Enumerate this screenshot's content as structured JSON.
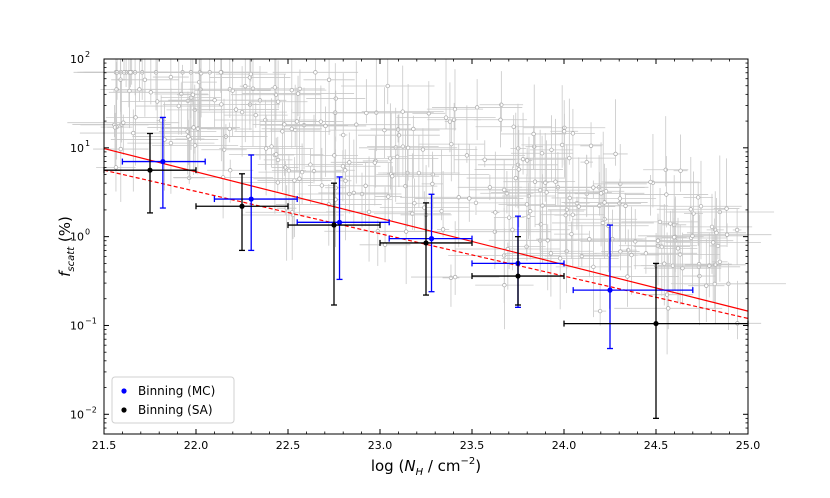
{
  "chart_data": {
    "type": "scatter",
    "xlabel": "log (N_H / cm^-2)",
    "ylabel": "f_scatt (%)",
    "xlim": [
      21.5,
      25.0
    ],
    "ylim": [
      0.006,
      100
    ],
    "yscale": "log",
    "x_ticks": [
      "21.5",
      "22.0",
      "22.5",
      "23.0",
      "23.5",
      "24.0",
      "24.5",
      "25.0"
    ],
    "y_ticks": [
      {
        "value": 0.01,
        "base": "10",
        "exp": "−2"
      },
      {
        "value": 0.1,
        "base": "10",
        "exp": "−1"
      },
      {
        "value": 1,
        "base": "10",
        "exp": "0"
      },
      {
        "value": 10,
        "base": "10",
        "exp": "1"
      },
      {
        "value": 100,
        "base": "10",
        "exp": "2"
      }
    ],
    "legend": {
      "position": "bottom-left"
    },
    "series": [
      {
        "name": "Binning (MC)",
        "color": "#0000ff",
        "points": [
          {
            "x": 21.82,
            "y": 7.0,
            "xerr": [
              21.6,
              22.05
            ],
            "yerr": [
              2.1,
              22.0
            ]
          },
          {
            "x": 22.3,
            "y": 2.65,
            "xerr": [
              22.1,
              22.55
            ],
            "yerr": [
              0.7,
              8.3
            ]
          },
          {
            "x": 22.78,
            "y": 1.45,
            "xerr": [
              22.55,
              23.05
            ],
            "yerr": [
              0.33,
              4.7
            ]
          },
          {
            "x": 23.28,
            "y": 0.95,
            "xerr": [
              23.05,
              23.5
            ],
            "yerr": [
              0.24,
              3.0
            ]
          },
          {
            "x": 23.75,
            "y": 0.5,
            "xerr": [
              23.5,
              24.0
            ],
            "yerr": [
              0.16,
              1.7
            ]
          },
          {
            "x": 24.25,
            "y": 0.25,
            "xerr": [
              24.05,
              24.7
            ],
            "yerr": [
              0.055,
              1.35
            ]
          }
        ]
      },
      {
        "name": "Binning (SA)",
        "color": "#000000",
        "points": [
          {
            "x": 21.75,
            "y": 5.6,
            "xerr": [
              21.5,
              22.0
            ],
            "yerr": [
              1.85,
              14.5
            ]
          },
          {
            "x": 22.25,
            "y": 2.2,
            "xerr": [
              22.0,
              22.5
            ],
            "yerr": [
              0.7,
              5.1
            ]
          },
          {
            "x": 22.75,
            "y": 1.35,
            "xerr": [
              22.5,
              23.0
            ],
            "yerr": [
              0.17,
              4.0
            ]
          },
          {
            "x": 23.25,
            "y": 0.85,
            "xerr": [
              23.0,
              23.5
            ],
            "yerr": [
              0.22,
              2.4
            ]
          },
          {
            "x": 23.75,
            "y": 0.36,
            "xerr": [
              23.5,
              24.0
            ],
            "yerr": [
              0.17,
              1.0
            ]
          },
          {
            "x": 24.5,
            "y": 0.105,
            "xerr": [
              24.0,
              25.0
            ],
            "yerr": [
              0.009,
              0.5
            ]
          }
        ]
      }
    ],
    "fit_lines": [
      {
        "style": "solid",
        "color": "#ff0000",
        "x": [
          21.5,
          25.0
        ],
        "y": [
          9.8,
          0.145
        ]
      },
      {
        "style": "dashed",
        "color": "#ff0000",
        "x": [
          21.5,
          25.0
        ],
        "y": [
          5.6,
          0.12
        ]
      }
    ],
    "background_points": {
      "color": "#b4b4b4",
      "count": 300,
      "note_only": false
    }
  }
}
